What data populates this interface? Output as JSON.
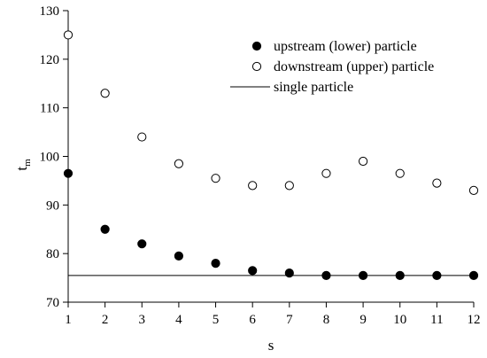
{
  "chart_data": {
    "type": "scatter",
    "title": "",
    "xlabel": "s",
    "ylabel": "t",
    "ylabel_subscript": "m",
    "xlim": [
      1,
      12
    ],
    "ylim": [
      70,
      130
    ],
    "xticks": [
      1,
      2,
      3,
      4,
      5,
      6,
      7,
      8,
      9,
      10,
      11,
      12
    ],
    "yticks": [
      70,
      80,
      90,
      100,
      110,
      120,
      130
    ],
    "grid": false,
    "legend_position": "top-right",
    "x": [
      1,
      2,
      3,
      4,
      5,
      6,
      7,
      8,
      9,
      10,
      11,
      12
    ],
    "series": [
      {
        "name": "upstream (lower) particle",
        "marker": "filled-circle",
        "color": "#000000",
        "values": [
          96.5,
          85.0,
          82.0,
          79.5,
          78.0,
          76.5,
          76.0,
          75.5,
          75.5,
          75.5,
          75.5,
          75.5
        ]
      },
      {
        "name": "downstream (upper) particle",
        "marker": "open-circle",
        "color": "#000000",
        "values": [
          125.0,
          113.0,
          104.0,
          98.5,
          95.5,
          94.0,
          94.0,
          96.5,
          99.0,
          96.5,
          94.5,
          93.0
        ]
      },
      {
        "name": "single particle",
        "marker": "line",
        "color": "#000000",
        "constant": 75.5
      }
    ]
  }
}
